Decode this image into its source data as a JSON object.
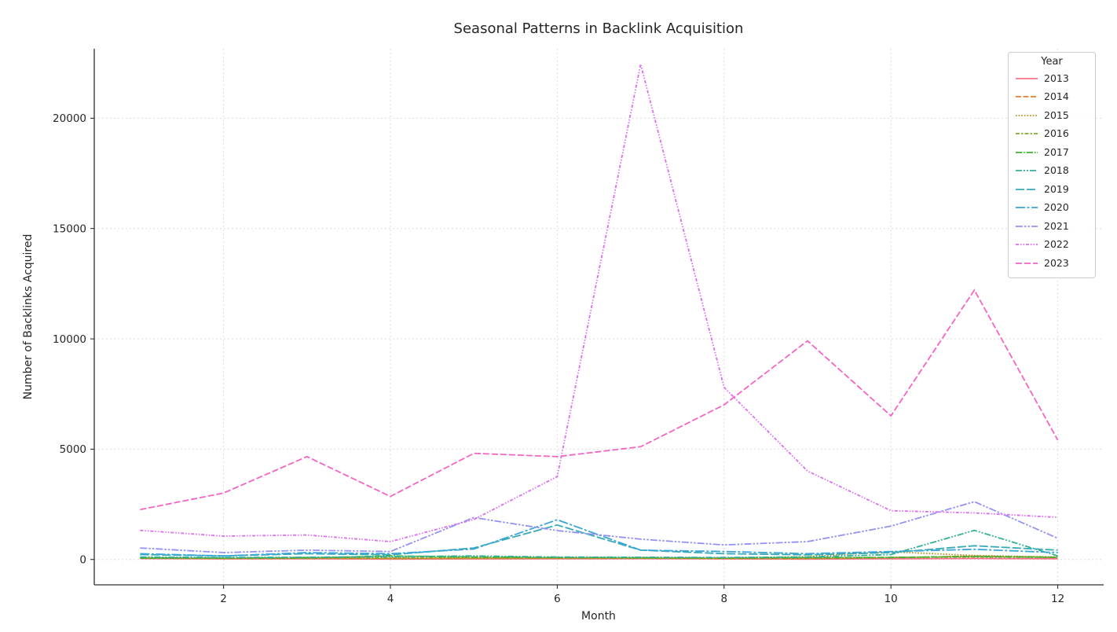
{
  "chart_data": {
    "type": "line",
    "title": "Seasonal Patterns in Backlink Acquisition",
    "xlabel": "Month",
    "ylabel": "Number of Backlinks Acquired",
    "legend_title": "Year",
    "legend_position": "upper right",
    "grid": true,
    "x": [
      1,
      2,
      3,
      4,
      5,
      6,
      7,
      8,
      9,
      10,
      11,
      12
    ],
    "xticks": [
      2,
      4,
      6,
      8,
      10,
      12
    ],
    "yticks": [
      0,
      5000,
      10000,
      15000,
      20000
    ],
    "xlim": [
      0.45,
      12.55
    ],
    "ylim": [
      -1150,
      23150
    ],
    "series": [
      {
        "name": "2013",
        "color": "#f77189",
        "dash": "",
        "values": [
          40,
          25,
          30,
          20,
          25,
          30,
          35,
          25,
          20,
          30,
          45,
          30
        ]
      },
      {
        "name": "2014",
        "color": "#e08132",
        "dash": "7,2.5",
        "values": [
          60,
          40,
          50,
          35,
          45,
          55,
          50,
          40,
          35,
          80,
          150,
          90
        ]
      },
      {
        "name": "2015",
        "color": "#b79832",
        "dash": "1.8,1.8",
        "values": [
          70,
          50,
          80,
          60,
          55,
          70,
          80,
          60,
          130,
          350,
          180,
          110
        ]
      },
      {
        "name": "2016",
        "color": "#85a831",
        "dash": "5,2,2.5,2",
        "values": [
          80,
          60,
          90,
          70,
          90,
          80,
          70,
          65,
          75,
          90,
          110,
          95
        ]
      },
      {
        "name": "2017",
        "color": "#40b132",
        "dash": "8.5,1.7,1.7,1.7",
        "values": [
          60,
          70,
          65,
          160,
          110,
          90,
          80,
          70,
          80,
          90,
          140,
          100
        ]
      },
      {
        "name": "2018",
        "color": "#33b095",
        "dash": "8,2,2,2,2,2",
        "values": [
          110,
          90,
          100,
          130,
          160,
          110,
          100,
          90,
          110,
          220,
          1320,
          160
        ]
      },
      {
        "name": "2019",
        "color": "#36abb5",
        "dash": "11,3",
        "values": [
          220,
          160,
          260,
          210,
          520,
          1560,
          420,
          260,
          210,
          310,
          620,
          420
        ]
      },
      {
        "name": "2020",
        "color": "#3aa5d9",
        "dash": "12,2.5,3,2.5",
        "values": [
          260,
          160,
          310,
          260,
          470,
          1800,
          420,
          360,
          260,
          360,
          460,
          310
        ]
      },
      {
        "name": "2021",
        "color": "#9491f4",
        "dash": "9,2,2.5,2,2.5,2",
        "values": [
          520,
          310,
          420,
          360,
          1900,
          1310,
          920,
          660,
          810,
          1510,
          2620,
          960
        ]
      },
      {
        "name": "2022",
        "color": "#dd6bf4",
        "dash": "4,2,1.5,2,1.5,2",
        "values": [
          1320,
          1060,
          1110,
          810,
          1810,
          3760,
          22450,
          7800,
          4010,
          2210,
          2110,
          1910
        ]
      },
      {
        "name": "2023",
        "color": "#f564c4",
        "dash": "8,3",
        "values": [
          2260,
          3010,
          4660,
          2860,
          4810,
          4660,
          5110,
          7010,
          9910,
          6510,
          12210,
          5410
        ]
      }
    ]
  }
}
